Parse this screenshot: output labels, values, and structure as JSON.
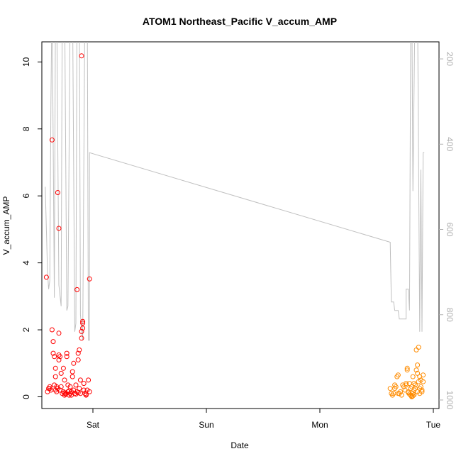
{
  "chart_data": {
    "type": "scatter",
    "title": "ATOM1 Northeast_Pacific V_accum_AMP",
    "xlabel": "Date",
    "ylabel": "V_accum_AMP",
    "x_ticks": [
      "Sat",
      "Sun",
      "Mon",
      "Tue"
    ],
    "x_tick_positions": [
      1,
      2,
      3,
      4
    ],
    "xlim": [
      0.55,
      4.05
    ],
    "ylim": [
      -0.35,
      10.6
    ],
    "y_ticks": [
      0,
      2,
      4,
      6,
      8,
      10
    ],
    "right_axis": {
      "label": "",
      "ticks": [
        200,
        400,
        600,
        800,
        1000
      ],
      "lim": [
        1020,
        160
      ],
      "reversed": true,
      "color": "#b0b0b0"
    },
    "grid": false,
    "series": [
      {
        "color": "#ff0000",
        "marker": "open-circle",
        "points": [
          [
            0.59,
            3.57
          ],
          [
            0.6,
            0.15
          ],
          [
            0.61,
            0.25
          ],
          [
            0.62,
            0.3
          ],
          [
            0.63,
            0.2
          ],
          [
            0.64,
            2.0
          ],
          [
            0.64,
            7.67
          ],
          [
            0.65,
            1.3
          ],
          [
            0.65,
            1.65
          ],
          [
            0.66,
            0.35
          ],
          [
            0.66,
            1.2
          ],
          [
            0.67,
            0.6
          ],
          [
            0.67,
            0.85
          ],
          [
            0.68,
            0.3
          ],
          [
            0.68,
            0.15
          ],
          [
            0.69,
            6.1
          ],
          [
            0.69,
            0.25
          ],
          [
            0.7,
            5.03
          ],
          [
            0.7,
            1.1
          ],
          [
            0.7,
            1.25
          ],
          [
            0.7,
            1.9
          ],
          [
            0.71,
            0.2
          ],
          [
            0.71,
            1.2
          ],
          [
            0.72,
            0.7
          ],
          [
            0.72,
            0.3
          ],
          [
            0.73,
            0.1
          ],
          [
            0.74,
            0.15
          ],
          [
            0.74,
            0.85
          ],
          [
            0.75,
            0.5
          ],
          [
            0.75,
            0.05
          ],
          [
            0.76,
            0.1
          ],
          [
            0.77,
            1.2
          ],
          [
            0.77,
            1.3
          ],
          [
            0.78,
            0.35
          ],
          [
            0.78,
            0.15
          ],
          [
            0.79,
            0.05
          ],
          [
            0.8,
            0.1
          ],
          [
            0.8,
            0.3
          ],
          [
            0.81,
            0.15
          ],
          [
            0.82,
            0.6
          ],
          [
            0.82,
            0.75
          ],
          [
            0.83,
            0.2
          ],
          [
            0.83,
            1.0
          ],
          [
            0.84,
            0.1
          ],
          [
            0.85,
            0.35
          ],
          [
            0.86,
            3.2
          ],
          [
            0.86,
            0.15
          ],
          [
            0.87,
            1.3
          ],
          [
            0.87,
            1.1
          ],
          [
            0.88,
            1.4
          ],
          [
            0.88,
            0.25
          ],
          [
            0.89,
            0.1
          ],
          [
            0.89,
            0.5
          ],
          [
            0.9,
            10.18
          ],
          [
            0.9,
            1.75
          ],
          [
            0.9,
            1.95
          ],
          [
            0.91,
            2.05
          ],
          [
            0.91,
            2.2
          ],
          [
            0.91,
            2.25
          ],
          [
            0.92,
            0.2
          ],
          [
            0.93,
            0.1
          ],
          [
            0.94,
            0.05
          ],
          [
            0.95,
            0.2
          ],
          [
            0.96,
            0.5
          ],
          [
            0.97,
            3.52
          ],
          [
            0.97,
            0.15
          ],
          [
            0.62,
            0.25
          ],
          [
            0.67,
            0.2
          ],
          [
            0.75,
            0.12
          ],
          [
            0.76,
            0.08
          ],
          [
            0.79,
            0.18
          ],
          [
            0.81,
            0.05
          ],
          [
            0.85,
            0.08
          ],
          [
            0.87,
            0.12
          ],
          [
            0.92,
            0.4
          ],
          [
            0.94,
            0.08
          ]
        ]
      },
      {
        "color": "#ff8c00",
        "marker": "open-circle",
        "points": [
          [
            3.62,
            0.25
          ],
          [
            3.63,
            0.1
          ],
          [
            3.64,
            0.05
          ],
          [
            3.65,
            0.1
          ],
          [
            3.66,
            0.35
          ],
          [
            3.66,
            0.25
          ],
          [
            3.67,
            0.3
          ],
          [
            3.68,
            0.6
          ],
          [
            3.69,
            0.1
          ],
          [
            3.69,
            0.65
          ],
          [
            3.7,
            0.1
          ],
          [
            3.71,
            0.15
          ],
          [
            3.72,
            0.05
          ],
          [
            3.73,
            0.35
          ],
          [
            3.74,
            0.3
          ],
          [
            3.75,
            0.2
          ],
          [
            3.76,
            0.4
          ],
          [
            3.76,
            0.35
          ],
          [
            3.77,
            0.8
          ],
          [
            3.77,
            0.85
          ],
          [
            3.78,
            0.15
          ],
          [
            3.79,
            0.4
          ],
          [
            3.8,
            0.25
          ],
          [
            3.8,
            0.05
          ],
          [
            3.81,
            0.0
          ],
          [
            3.81,
            0.3
          ],
          [
            3.82,
            0.1
          ],
          [
            3.82,
            0.6
          ],
          [
            3.83,
            0.2
          ],
          [
            3.83,
            0.4
          ],
          [
            3.84,
            0.35
          ],
          [
            3.85,
            0.8
          ],
          [
            3.85,
            1.4
          ],
          [
            3.86,
            0.95
          ],
          [
            3.86,
            0.7
          ],
          [
            3.87,
            1.48
          ],
          [
            3.87,
            0.45
          ],
          [
            3.88,
            0.6
          ],
          [
            3.88,
            0.1
          ],
          [
            3.89,
            0.3
          ],
          [
            3.89,
            0.5
          ],
          [
            3.9,
            0.15
          ],
          [
            3.9,
            0.2
          ],
          [
            3.91,
            0.65
          ],
          [
            3.91,
            0.45
          ],
          [
            3.8,
            0.05
          ],
          [
            3.81,
            0.02
          ],
          [
            3.82,
            0.03
          ],
          [
            3.83,
            0.06
          ],
          [
            3.79,
            0.08
          ],
          [
            3.78,
            0.12
          ],
          [
            3.84,
            0.25
          ],
          [
            3.86,
            0.15
          ],
          [
            3.88,
            0.25
          ]
        ]
      }
    ],
    "line_series": {
      "color": "#c0c0c0",
      "axis": "right",
      "points": [
        [
          0.58,
          500
        ],
        [
          0.6,
          700
        ],
        [
          0.61,
          740
        ],
        [
          0.62,
          720
        ],
        [
          0.63,
          300
        ],
        [
          0.64,
          40
        ],
        [
          0.66,
          760
        ],
        [
          0.67,
          80
        ],
        [
          0.68,
          40
        ],
        [
          0.7,
          730
        ],
        [
          0.72,
          780
        ],
        [
          0.73,
          60
        ],
        [
          0.75,
          40
        ],
        [
          0.77,
          790
        ],
        [
          0.78,
          780
        ],
        [
          0.8,
          60
        ],
        [
          0.82,
          40
        ],
        [
          0.84,
          840
        ],
        [
          0.85,
          820
        ],
        [
          0.86,
          60
        ],
        [
          0.88,
          40
        ],
        [
          0.89,
          800
        ],
        [
          0.9,
          830
        ],
        [
          0.91,
          860
        ],
        [
          0.93,
          40
        ],
        [
          0.95,
          40
        ],
        [
          0.96,
          860
        ],
        [
          0.97,
          860
        ],
        [
          0.97,
          420
        ],
        [
          3.62,
          630
        ],
        [
          3.63,
          770
        ],
        [
          3.65,
          770
        ],
        [
          3.66,
          790
        ],
        [
          3.69,
          790
        ],
        [
          3.7,
          810
        ],
        [
          3.76,
          810
        ],
        [
          3.76,
          740
        ],
        [
          3.78,
          740
        ],
        [
          3.79,
          790
        ],
        [
          3.8,
          160
        ],
        [
          3.81,
          40
        ],
        [
          3.82,
          510
        ],
        [
          3.84,
          40
        ],
        [
          3.86,
          40
        ],
        [
          3.88,
          840
        ],
        [
          3.89,
          460
        ],
        [
          3.9,
          840
        ],
        [
          3.91,
          420
        ],
        [
          3.92,
          420
        ]
      ]
    }
  }
}
